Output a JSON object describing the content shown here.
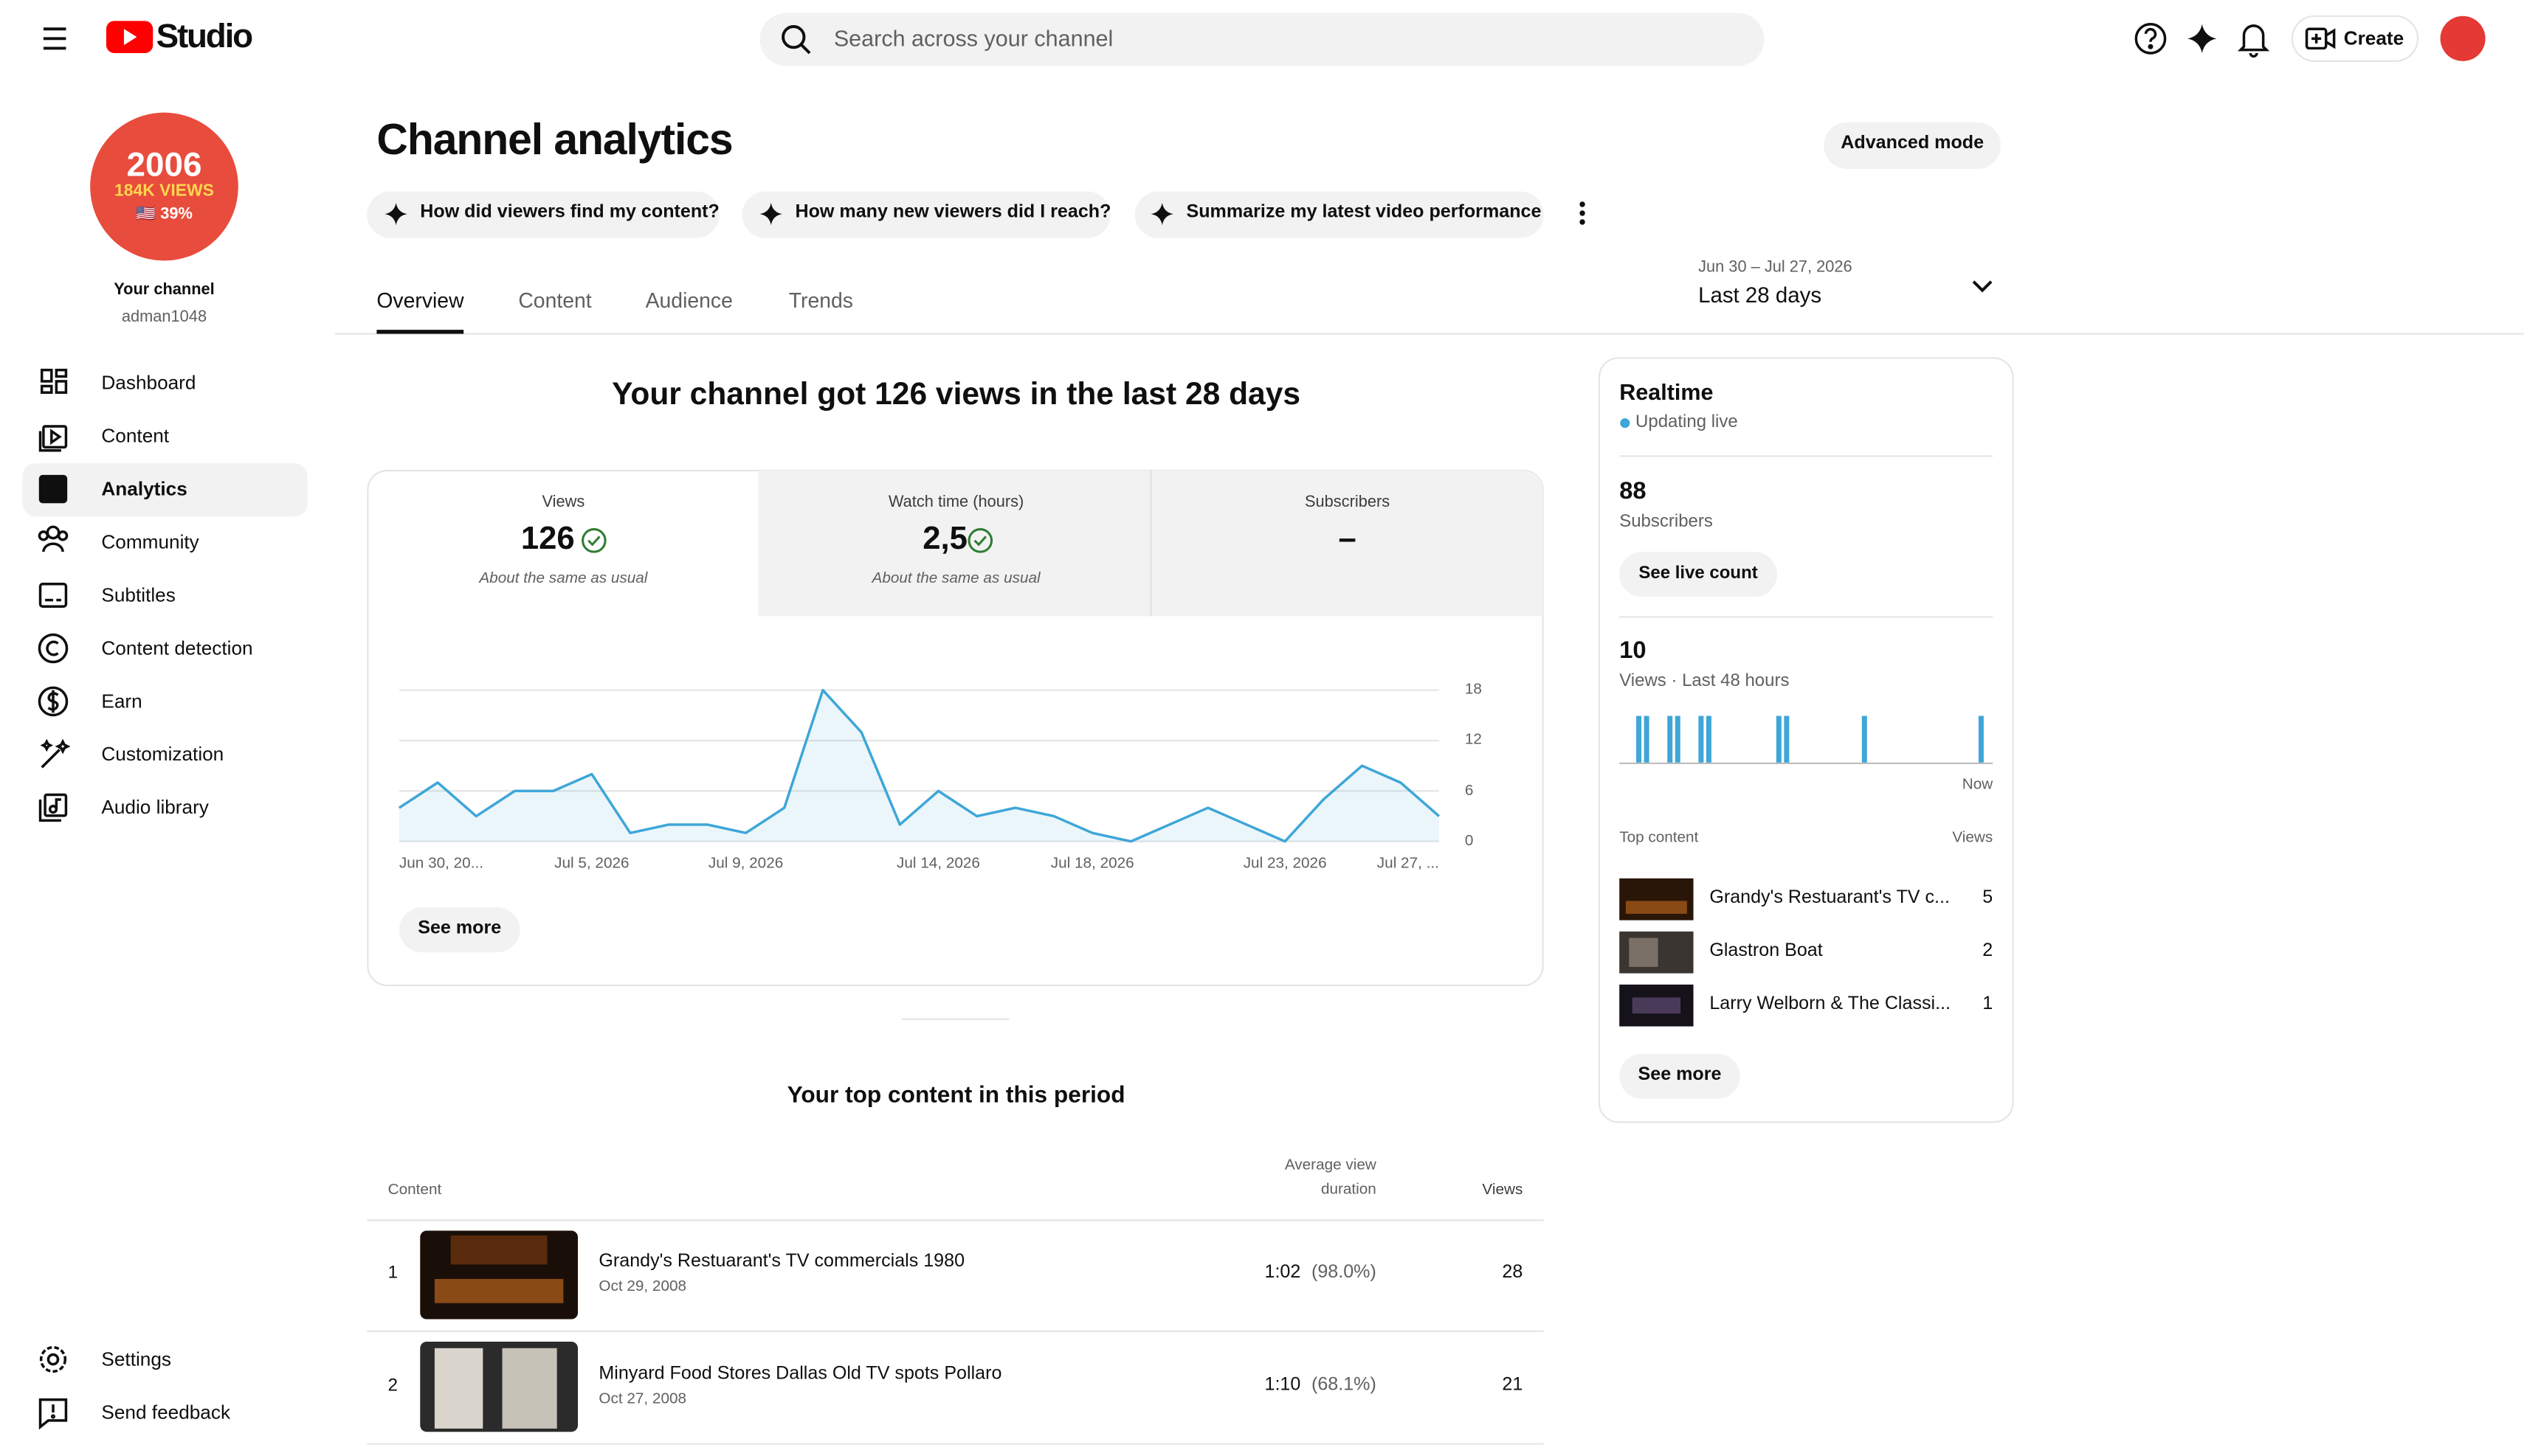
{
  "header": {
    "logo_text": "Studio",
    "search_placeholder": "Search across your channel",
    "create_label": "Create"
  },
  "sidebar": {
    "badge": {
      "year": "2006",
      "views": "184K VIEWS",
      "share": "🇺🇸 39%"
    },
    "channel_label": "Your channel",
    "handle": "adman1048",
    "nav": [
      "Dashboard",
      "Content",
      "Analytics",
      "Community",
      "Subtitles",
      "Content detection",
      "Earn",
      "Customization",
      "Audio library"
    ],
    "footer_nav": [
      "Settings",
      "Send feedback"
    ]
  },
  "page": {
    "title": "Channel analytics",
    "advanced_mode": "Advanced mode",
    "prompts": [
      "How did viewers find my content?",
      "How many new viewers did I reach?",
      "Summarize my latest video performance"
    ],
    "tabs": [
      "Overview",
      "Content",
      "Audience",
      "Trends"
    ],
    "date_range": "Jun 30 – Jul 27, 2026",
    "period": "Last 28 days"
  },
  "overview": {
    "headline": "Your channel got 126 views in the last 28 days",
    "metrics": [
      {
        "label": "Views",
        "value": "126",
        "note": "About the same as usual"
      },
      {
        "label": "Watch time (hours)",
        "value": "2,5",
        "note": "About the same as usual"
      },
      {
        "label": "Subscribers",
        "value": "–"
      }
    ],
    "see_more": "See more"
  },
  "chart_data": [
    {
      "type": "line",
      "categories": [
        "Jun 30, 20...",
        null,
        null,
        null,
        null,
        "Jul 5, 2026",
        null,
        null,
        null,
        "Jul 9, 2026",
        null,
        null,
        null,
        null,
        "Jul 14, 2026",
        null,
        null,
        null,
        "Jul 18, 2026",
        null,
        null,
        null,
        null,
        "Jul 23, 2026",
        null,
        null,
        null,
        "Jul 27, ..."
      ],
      "values": [
        4,
        7,
        3,
        6,
        6,
        8,
        1,
        2,
        2,
        1,
        4,
        18,
        13,
        2,
        6,
        3,
        4,
        3,
        1,
        0,
        2,
        4,
        2,
        0,
        5,
        9,
        7,
        3
      ],
      "color": "#3ea6d8",
      "ylim": [
        0,
        18
      ],
      "yticks": [
        0,
        6,
        12,
        18
      ],
      "grid": true
    },
    {
      "type": "bar",
      "categories": [
        null,
        null,
        null,
        null,
        null,
        null,
        null,
        null,
        null,
        null,
        null,
        null,
        null,
        null,
        null,
        null,
        null,
        null,
        null,
        null,
        null,
        null,
        null,
        null,
        null,
        null,
        null,
        null,
        null,
        null,
        null,
        null,
        null,
        null,
        null,
        null,
        null,
        null,
        null,
        null,
        null,
        null,
        null,
        null,
        null,
        null,
        null,
        "Now"
      ],
      "values": [
        0,
        0,
        1,
        1,
        0,
        0,
        1,
        1,
        0,
        0,
        1,
        1,
        0,
        0,
        0,
        0,
        0,
        0,
        0,
        0,
        1,
        1,
        0,
        0,
        0,
        0,
        0,
        0,
        0,
        0,
        0,
        1,
        0,
        0,
        0,
        0,
        0,
        0,
        0,
        0,
        0,
        0,
        0,
        0,
        0,
        0,
        1,
        0
      ],
      "color": "#3ea6d8"
    }
  ],
  "top_content": {
    "title": "Your top content in this period",
    "columns": [
      "Content",
      "Average view duration",
      "Views"
    ],
    "rows": [
      {
        "rank": 1,
        "title": "Grandy's Restuarant's TV commercials 1980",
        "date": "Oct 29, 2008",
        "duration": "1:02",
        "percent": "(98.0%)",
        "views": 28
      },
      {
        "rank": 2,
        "title": "Minyard Food Stores Dallas Old TV spots Pollaro",
        "date": "Oct 27, 2008",
        "duration": "1:10",
        "percent": "(68.1%)",
        "views": 21
      }
    ]
  },
  "realtime": {
    "title": "Realtime",
    "status": "Updating live",
    "subscribers": 88,
    "subscribers_label": "Subscribers",
    "live_count_button": "See live count",
    "views": 10,
    "views_label": "Views · Last 48 hours",
    "top_content_label": "Top content",
    "views_column": "Views",
    "items": [
      {
        "title": "Grandy's Restuarant's TV c...",
        "views": 5
      },
      {
        "title": "Glastron Boat",
        "views": 2
      },
      {
        "title": "Larry Welborn & The Classi...",
        "views": 1
      }
    ],
    "see_more": "See more"
  }
}
